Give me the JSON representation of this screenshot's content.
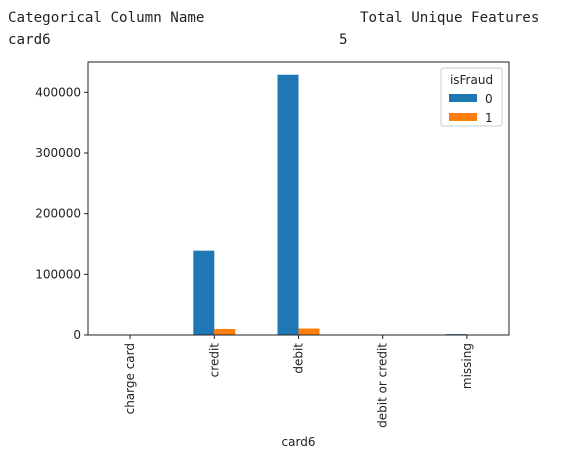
{
  "output": {
    "header_left": "Categorical Column Name",
    "header_right": "Total Unique Features",
    "column_name": "card6",
    "unique_count": "5"
  },
  "chart_data": {
    "type": "bar",
    "categories": [
      "charge card",
      "credit",
      "debit",
      "debit or credit",
      "missing"
    ],
    "series": [
      {
        "name": "0",
        "color": "#1f77b4",
        "values": [
          15,
          139000,
          429000,
          30,
          1500
        ]
      },
      {
        "name": "1",
        "color": "#ff7f0e",
        "values": [
          0,
          9950,
          10700,
          0,
          50
        ]
      }
    ],
    "xlabel": "card6",
    "ylabel": "",
    "ylim": [
      0,
      450000
    ],
    "yticks": [
      0,
      100000,
      200000,
      300000,
      400000
    ],
    "ytick_labels": [
      "0",
      "100000",
      "200000",
      "300000",
      "400000"
    ],
    "legend": {
      "title": "isFraud",
      "placement": "top-right"
    },
    "grid": false
  }
}
